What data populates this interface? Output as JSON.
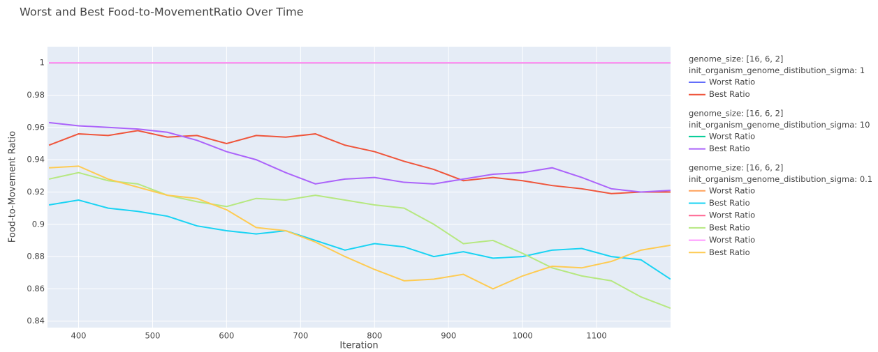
{
  "chart_data": {
    "type": "line",
    "title": "Worst and Best Food-to-MovementRatio Over Time",
    "xlabel": "Iteration",
    "ylabel": "Food-to-Movement Ratio",
    "x": [
      360,
      400,
      440,
      480,
      520,
      560,
      600,
      640,
      680,
      720,
      760,
      800,
      840,
      880,
      920,
      960,
      1000,
      1040,
      1080,
      1120,
      1160,
      1200
    ],
    "xlim": [
      358,
      1200
    ],
    "xticks": [
      400,
      500,
      600,
      700,
      800,
      900,
      1000,
      1100
    ],
    "ylim": [
      0.836,
      1.01
    ],
    "yticks": [
      0.84,
      0.86,
      0.88,
      0.9,
      0.92,
      0.94,
      0.96,
      0.98,
      1
    ],
    "grid": true,
    "groups": [
      {
        "title": [
          "genome_size: [16, 6, 2]",
          "init_organism_genome_distibution_sigma: 1"
        ],
        "series": [
          {
            "name": "Worst Ratio",
            "color": "#636EFA",
            "values": [
              1,
              1,
              1,
              1,
              1,
              1,
              1,
              1,
              1,
              1,
              1,
              1,
              1,
              1,
              1,
              1,
              1,
              1,
              1,
              1,
              1,
              1
            ]
          },
          {
            "name": "Best Ratio",
            "color": "#EF553B",
            "values": [
              0.949,
              0.956,
              0.955,
              0.958,
              0.954,
              0.955,
              0.95,
              0.955,
              0.954,
              0.956,
              0.949,
              0.945,
              0.939,
              0.934,
              0.927,
              0.929,
              0.927,
              0.924,
              0.922,
              0.919,
              0.92,
              0.92
            ]
          }
        ]
      },
      {
        "title": [
          "genome_size: [16, 6, 2]",
          "init_organism_genome_distibution_sigma: 10"
        ],
        "series": [
          {
            "name": "Worst Ratio",
            "color": "#00CC96",
            "values": [
              1,
              1,
              1,
              1,
              1,
              1,
              1,
              1,
              1,
              1,
              1,
              1,
              1,
              1,
              1,
              1,
              1,
              1,
              1,
              1,
              1,
              1
            ]
          },
          {
            "name": "Best Ratio",
            "color": "#AB63FA",
            "values": [
              0.963,
              0.961,
              0.96,
              0.959,
              0.957,
              0.952,
              0.945,
              0.94,
              0.932,
              0.925,
              0.928,
              0.929,
              0.926,
              0.925,
              0.928,
              0.931,
              0.932,
              0.935,
              0.929,
              0.922,
              0.92,
              0.921
            ]
          }
        ]
      },
      {
        "title": [
          "genome_size: [16, 6, 2]",
          "init_organism_genome_distibution_sigma: 0.1"
        ],
        "series": [
          {
            "name": "Worst Ratio",
            "color": "#FFA15A",
            "values": [
              1,
              1,
              1,
              1,
              1,
              1,
              1,
              1,
              1,
              1,
              1,
              1,
              1,
              1,
              1,
              1,
              1,
              1,
              1,
              1,
              1,
              1
            ]
          },
          {
            "name": "Best Ratio",
            "color": "#19D3F3",
            "values": [
              0.912,
              0.915,
              0.91,
              0.908,
              0.905,
              0.899,
              0.896,
              0.894,
              0.896,
              0.89,
              0.884,
              0.888,
              0.886,
              0.88,
              0.883,
              0.879,
              0.88,
              0.884,
              0.885,
              0.88,
              0.878,
              0.866
            ]
          },
          {
            "name": "Worst Ratio",
            "color": "#FF6692",
            "values": [
              1,
              1,
              1,
              1,
              1,
              1,
              1,
              1,
              1,
              1,
              1,
              1,
              1,
              1,
              1,
              1,
              1,
              1,
              1,
              1,
              1,
              1
            ]
          },
          {
            "name": "Best Ratio",
            "color": "#B6E880",
            "values": [
              0.928,
              0.932,
              0.927,
              0.925,
              0.918,
              0.914,
              0.911,
              0.916,
              0.915,
              0.918,
              0.915,
              0.912,
              0.91,
              0.9,
              0.888,
              0.89,
              0.882,
              0.873,
              0.868,
              0.865,
              0.855,
              0.848
            ]
          },
          {
            "name": "Worst Ratio",
            "color": "#FF97FF",
            "values": [
              1,
              1,
              1,
              1,
              1,
              1,
              1,
              1,
              1,
              1,
              1,
              1,
              1,
              1,
              1,
              1,
              1,
              1,
              1,
              1,
              1,
              1
            ]
          },
          {
            "name": "Best Ratio",
            "color": "#FECB52",
            "values": [
              0.935,
              0.936,
              0.928,
              0.923,
              0.918,
              0.916,
              0.909,
              0.898,
              0.896,
              0.889,
              0.88,
              0.872,
              0.865,
              0.866,
              0.869,
              0.86,
              0.868,
              0.874,
              0.873,
              0.877,
              0.884,
              0.887
            ]
          }
        ]
      }
    ]
  }
}
